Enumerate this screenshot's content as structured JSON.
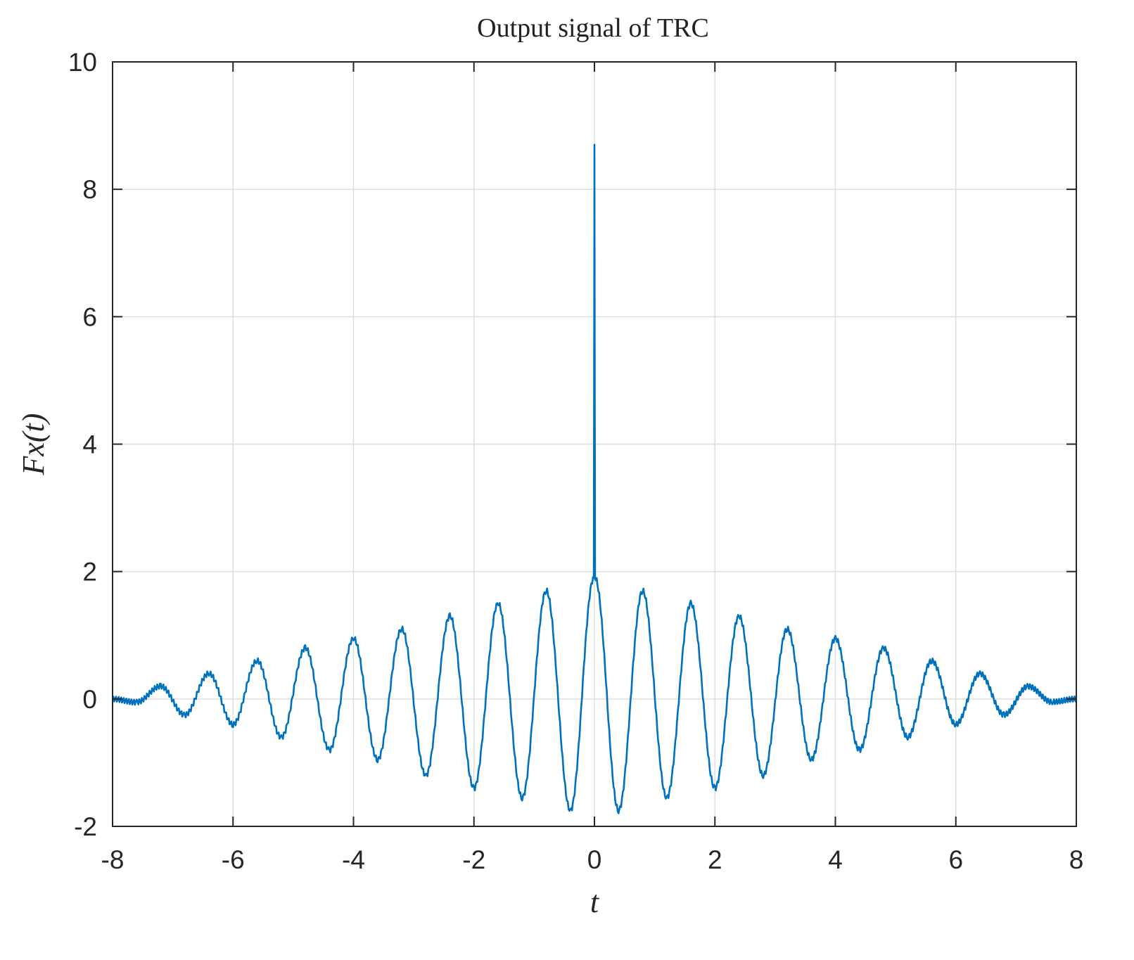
{
  "chart_data": {
    "type": "line",
    "title": "Output signal of TRC",
    "xlabel": "t",
    "ylabel": "Fx(t)",
    "xlim": [
      -8,
      8
    ],
    "ylim": [
      -2,
      10
    ],
    "xticks": [
      -8,
      -6,
      -4,
      -2,
      0,
      2,
      4,
      6,
      8
    ],
    "yticks": [
      -2,
      0,
      2,
      4,
      6,
      8,
      10
    ],
    "xtick_labels": [
      "-8",
      "-6",
      "-4",
      "-2",
      "0",
      "2",
      "4",
      "6",
      "8"
    ],
    "ytick_labels": [
      "-2",
      "0",
      "2",
      "4",
      "6",
      "8",
      "10"
    ],
    "grid": true,
    "series": [
      {
        "color": "#0072bd",
        "x": [
          -8.0,
          -7.6,
          -7.2,
          -6.8,
          -6.4,
          -6.0,
          -5.6,
          -5.2,
          -4.8,
          -4.4,
          -4.0,
          -3.6,
          -3.2,
          -2.8,
          -2.4,
          -2.0,
          -1.6,
          -1.2,
          -0.8,
          -0.4,
          -0.01,
          0.0,
          0.01,
          0.4,
          0.8,
          1.2,
          1.6,
          2.0,
          2.4,
          2.8,
          3.2,
          3.6,
          4.0,
          4.4,
          4.8,
          5.2,
          5.6,
          6.0,
          6.4,
          6.8,
          7.2,
          7.6,
          8.0
        ],
        "y": [
          0.0,
          -0.05,
          0.2,
          -0.25,
          0.4,
          -0.4,
          0.6,
          -0.6,
          0.8,
          -0.8,
          0.95,
          -0.95,
          1.1,
          -1.2,
          1.3,
          -1.4,
          1.5,
          -1.55,
          1.7,
          -1.75,
          1.9,
          8.7,
          1.9,
          -1.75,
          1.7,
          -1.55,
          1.5,
          -1.4,
          1.3,
          -1.2,
          1.1,
          -0.95,
          0.95,
          -0.8,
          0.8,
          -0.6,
          0.6,
          -0.4,
          0.4,
          -0.25,
          0.2,
          -0.05,
          0.0
        ]
      }
    ]
  }
}
